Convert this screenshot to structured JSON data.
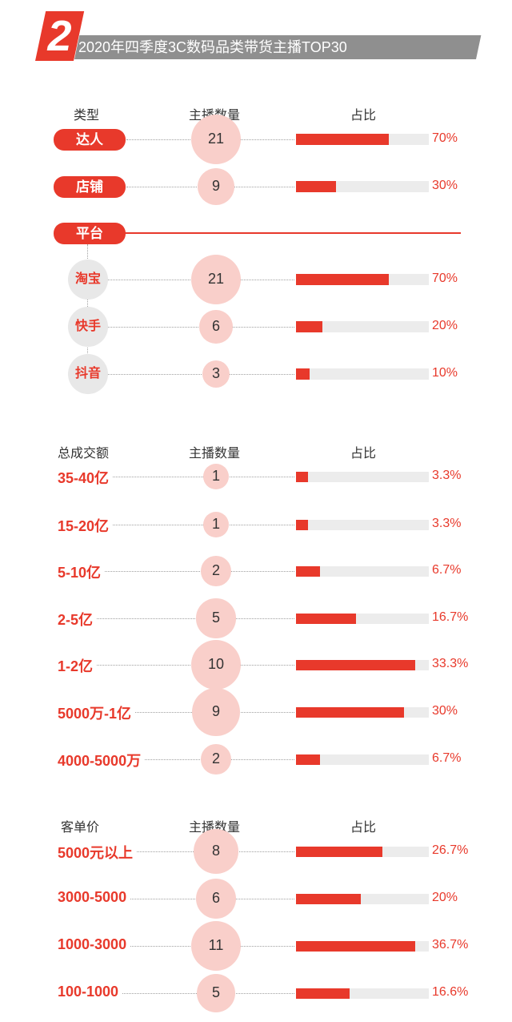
{
  "header": {
    "number": "2",
    "title": "2020年四季度3C数码品类带货主播TOP30"
  },
  "colors": {
    "accent": "#e8392b",
    "circle": "#f9cfca",
    "track": "#ececec"
  },
  "chart_data": [
    {
      "type": "bar",
      "col_headers": [
        "类型",
        "主播数量",
        "占比"
      ],
      "categories": [
        "达人",
        "店铺"
      ],
      "counts": [
        21,
        9
      ],
      "percent_labels": [
        "70%",
        "30%"
      ],
      "values": [
        70,
        30
      ],
      "xlim": [
        0,
        100
      ]
    },
    {
      "type": "bar",
      "group_label": "平台",
      "categories": [
        "淘宝",
        "快手",
        "抖音"
      ],
      "counts": [
        21,
        6,
        3
      ],
      "percent_labels": [
        "70%",
        "20%",
        "10%"
      ],
      "values": [
        70,
        20,
        10
      ],
      "xlim": [
        0,
        100
      ]
    },
    {
      "type": "bar",
      "col_headers": [
        "总成交额",
        "主播数量",
        "占比"
      ],
      "categories": [
        "35-40亿",
        "15-20亿",
        "5-10亿",
        "2-5亿",
        "1-2亿",
        "5000万-1亿",
        "4000-5000万"
      ],
      "counts": [
        1,
        1,
        2,
        5,
        10,
        9,
        2
      ],
      "percent_labels": [
        "3.3%",
        "3.3%",
        "6.7%",
        "16.7%",
        "33.3%",
        "30%",
        "6.7%"
      ],
      "values": [
        3.3,
        3.3,
        6.7,
        16.7,
        33.3,
        30,
        6.7
      ],
      "xlim": [
        0,
        37
      ]
    },
    {
      "type": "bar",
      "col_headers": [
        "客单价",
        "主播数量",
        "占比"
      ],
      "categories": [
        "5000元以上",
        "3000-5000",
        "1000-3000",
        "100-1000"
      ],
      "counts": [
        8,
        6,
        11,
        5
      ],
      "percent_labels": [
        "26.7%",
        "20%",
        "36.7%",
        "16.6%"
      ],
      "values": [
        26.7,
        20,
        36.7,
        16.6
      ],
      "xlim": [
        0,
        41
      ]
    }
  ]
}
